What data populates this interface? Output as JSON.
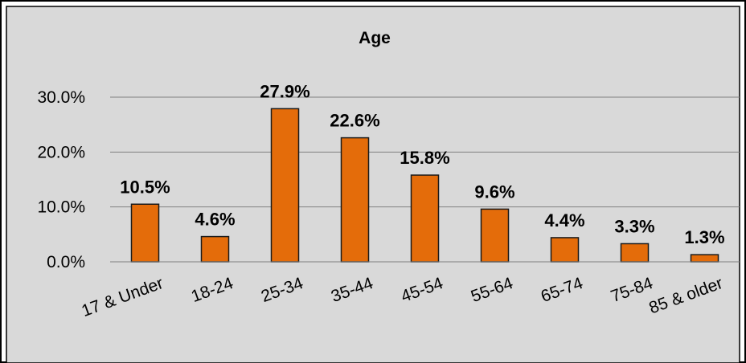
{
  "chart_data": {
    "type": "bar",
    "title": "Age",
    "categories": [
      "17 & Under",
      "18-24",
      "25-34",
      "35-44",
      "45-54",
      "55-64",
      "65-74",
      "75-84",
      "85 & older"
    ],
    "values": [
      10.5,
      4.6,
      27.9,
      22.6,
      15.8,
      9.6,
      4.4,
      3.3,
      1.3
    ],
    "data_labels": [
      "10.5%",
      "4.6%",
      "27.9%",
      "22.6%",
      "15.8%",
      "9.6%",
      "4.4%",
      "3.3%",
      "1.3%"
    ],
    "y_ticks": [
      0,
      10,
      20,
      30
    ],
    "y_tick_labels": [
      "0.0%",
      "10.0%",
      "20.0%",
      "30.0%"
    ],
    "ylim": [
      0,
      30
    ],
    "grid": true,
    "legend": "none",
    "xlabel": "",
    "ylabel": "",
    "colors": {
      "bar_fill": "#E46C0A",
      "bar_stroke": "#1a1a1a",
      "plot_background": "#D9D9D9",
      "gridline": "#808080"
    }
  }
}
